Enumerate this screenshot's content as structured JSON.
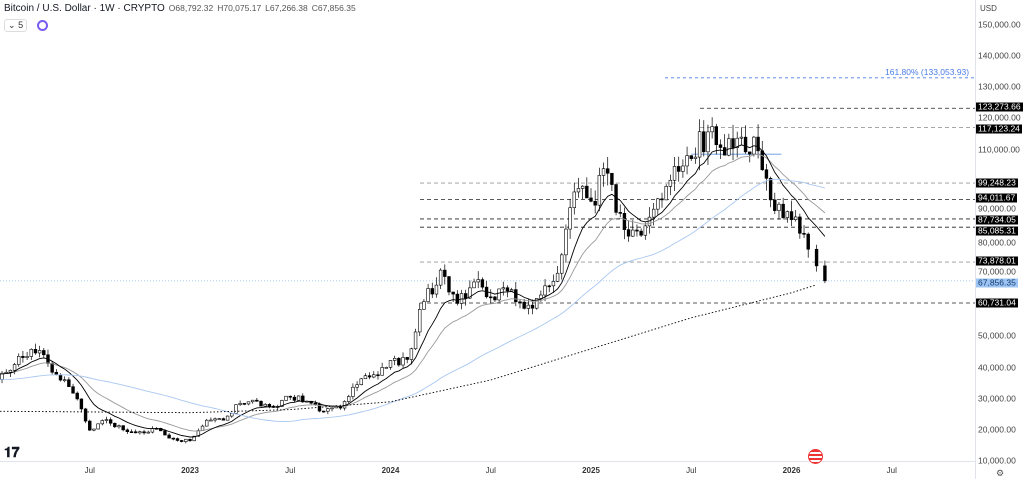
{
  "header": {
    "title": "Bitcoin / U.S. Dollar · 1W · CRYPTO",
    "open": "O68,792.32",
    "high": "H70,075.17",
    "low": "L67,266.38",
    "close": "C67,856.35"
  },
  "indicators": {
    "count": "5",
    "count_icon": "chevron-down-icon",
    "loading_icon": "spinner-icon"
  },
  "currency": "USD",
  "price_axis": [
    "150,000.00",
    "140,000.00",
    "130,000.00",
    "120,000.00",
    "110,000.00",
    "90,000.00",
    "80,000.00",
    "70,000.00",
    "50,000.00",
    "40,000.00",
    "30,000.00",
    "20,000.00",
    "10,000.00"
  ],
  "price_axis_values": [
    150000,
    140000,
    130000,
    120000,
    110000,
    90000,
    80000,
    70000,
    50000,
    40000,
    30000,
    20000,
    10000
  ],
  "levels": [
    {
      "value": 123273.66,
      "label": "123,273.66",
      "style": "dark"
    },
    {
      "value": 117123.24,
      "label": "117,123.24",
      "style": "light"
    },
    {
      "value": 99248.23,
      "label": "99,248.23",
      "style": "light"
    },
    {
      "value": 94011.67,
      "label": "94,011.67",
      "style": "dark"
    },
    {
      "value": 87734.05,
      "label": "87,734.05",
      "style": "dark"
    },
    {
      "value": 85085.31,
      "label": "85,085.31",
      "style": "dark"
    },
    {
      "value": 73878.01,
      "label": "73,878.01",
      "style": "light"
    },
    {
      "value": 60731.04,
      "label": "60,731.04",
      "style": "dark"
    }
  ],
  "current_price": {
    "value": 67856.35,
    "label": "67,856.35"
  },
  "fib": {
    "value": 133053.93,
    "label": "161.80% (133,053.93)"
  },
  "time_axis": [
    {
      "label": "Jul",
      "t": 2022.5,
      "year": false
    },
    {
      "label": "2023",
      "t": 2023,
      "year": true
    },
    {
      "label": "Jul",
      "t": 2023.5,
      "year": false
    },
    {
      "label": "2024",
      "t": 2024,
      "year": true
    },
    {
      "label": "Jul",
      "t": 2024.5,
      "year": false
    },
    {
      "label": "2025",
      "t": 2025,
      "year": true
    },
    {
      "label": "Jul",
      "t": 2025.5,
      "year": false
    },
    {
      "label": "2026",
      "t": 2026,
      "year": true
    },
    {
      "label": "Jul",
      "t": 2026.5,
      "year": false
    }
  ],
  "chart_data": {
    "type": "candlestick",
    "interval": "1W",
    "start": 2022.0,
    "monthly_closes": [
      38500,
      43200,
      45500,
      37700,
      31800,
      19900,
      23300,
      20000,
      19400,
      20500,
      17200,
      16500,
      23100,
      23100,
      28500,
      29200,
      27200,
      30500,
      29200,
      26000,
      27000,
      34500,
      37700,
      42300,
      42600,
      61200,
      71300,
      60600,
      67500,
      62700,
      64600,
      59000,
      63300,
      70300,
      96400,
      93400,
      102400,
      84300,
      82500,
      94200,
      104600,
      107100,
      115700,
      108200,
      114000,
      109600,
      90400,
      87500,
      78000,
      67856
    ],
    "ma200_points": [
      [
        2022.0,
        26000
      ],
      [
        2023.0,
        25500
      ],
      [
        2023.5,
        26500
      ],
      [
        2024.0,
        29000
      ],
      [
        2024.5,
        36000
      ],
      [
        2025.0,
        46000
      ],
      [
        2025.5,
        56000
      ],
      [
        2026.0,
        64000
      ],
      [
        2026.12,
        66500
      ]
    ],
    "range_box": {
      "from": 2025.5,
      "to": 2025.95,
      "value": 108500
    }
  },
  "colors": {
    "up": "#ffffff",
    "down": "#000000",
    "ema_fast": "#000000",
    "ema_slow": "#999999",
    "ma50": "#a9c8f0",
    "fib": "#4a7de8"
  }
}
